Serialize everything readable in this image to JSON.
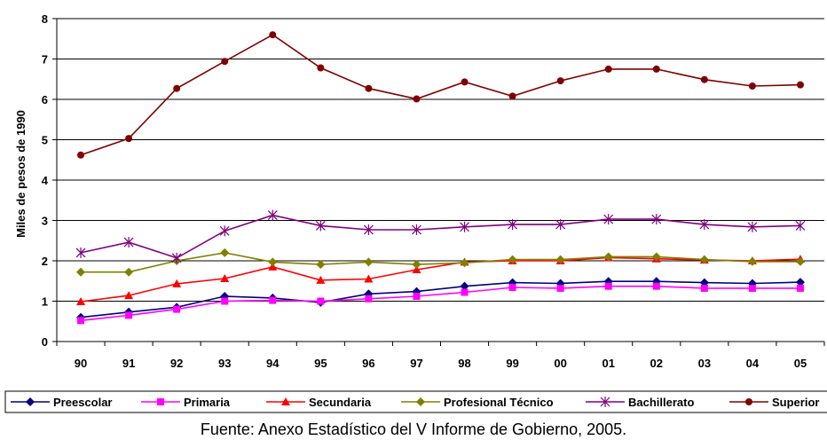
{
  "source_note": "Fuente: Anexo Estadístico del V Informe de Gobierno, 2005.",
  "chart_data": {
    "type": "line",
    "title": "",
    "xlabel": "",
    "ylabel": "Miles de pesos de 1990",
    "ylim": [
      0,
      8
    ],
    "yticks": [
      "0",
      "1",
      "2",
      "3",
      "4",
      "5",
      "6",
      "7",
      "8"
    ],
    "grid": true,
    "legend_position": "bottom",
    "categories": [
      "90",
      "91",
      "92",
      "93",
      "94",
      "95",
      "96",
      "97",
      "98",
      "99",
      "00",
      "01",
      "02",
      "03",
      "04",
      "05"
    ],
    "series": [
      {
        "name": "Preescolar",
        "color": "#000080",
        "marker": "diamond",
        "values": [
          0.6,
          0.73,
          0.85,
          1.12,
          1.08,
          0.97,
          1.18,
          1.24,
          1.37,
          1.46,
          1.44,
          1.49,
          1.49,
          1.46,
          1.44,
          1.47
        ]
      },
      {
        "name": "Primaria",
        "color": "#ff00ff",
        "marker": "square",
        "values": [
          0.52,
          0.65,
          0.8,
          1.0,
          1.02,
          1.0,
          1.06,
          1.12,
          1.22,
          1.34,
          1.32,
          1.37,
          1.37,
          1.32,
          1.32,
          1.32
        ]
      },
      {
        "name": "Secundaria",
        "color": "#ff0000",
        "marker": "triangle",
        "values": [
          0.99,
          1.14,
          1.43,
          1.56,
          1.85,
          1.52,
          1.55,
          1.78,
          1.97,
          2.0,
          2.0,
          2.08,
          2.05,
          2.02,
          2.0,
          2.04
        ]
      },
      {
        "name": "Profesional Técnico",
        "color": "#808000",
        "marker": "diamond",
        "values": [
          1.72,
          1.72,
          2.0,
          2.2,
          1.97,
          1.91,
          1.97,
          1.91,
          1.95,
          2.03,
          2.03,
          2.1,
          2.1,
          2.03,
          1.98,
          1.98
        ]
      },
      {
        "name": "Bachillerato",
        "color": "#800080",
        "marker": "star",
        "values": [
          2.2,
          2.46,
          2.07,
          2.74,
          3.13,
          2.87,
          2.77,
          2.77,
          2.84,
          2.9,
          2.9,
          3.03,
          3.03,
          2.9,
          2.84,
          2.87
        ]
      },
      {
        "name": "Superior",
        "color": "#800000",
        "marker": "circle",
        "values": [
          4.62,
          5.03,
          6.27,
          6.94,
          7.6,
          6.78,
          6.27,
          6.01,
          6.43,
          6.08,
          6.46,
          6.75,
          6.75,
          6.49,
          6.33,
          6.36
        ]
      }
    ]
  }
}
